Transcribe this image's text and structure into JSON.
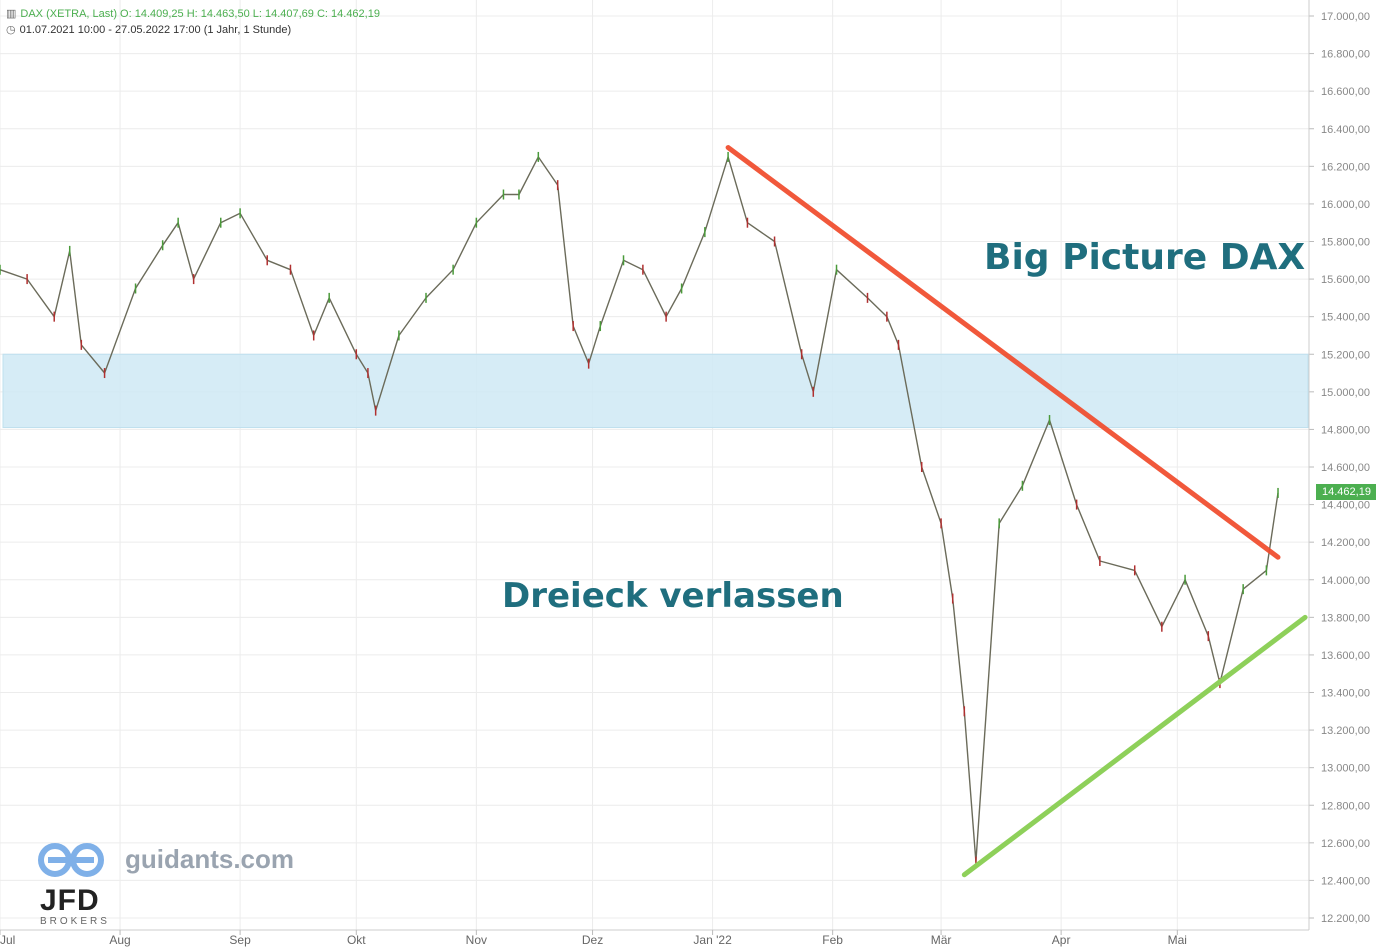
{
  "header": {
    "line1": "DAX (XETRA, Last)  O: 14.409,25  H: 14.463,50  L: 14.407,69  C: 14.462,19",
    "line2": "01.07.2021 10:00 - 27.05.2022 17:00  (1 Jahr, 1 Stunde)"
  },
  "annotations": {
    "title": "Big Picture DAX",
    "subtitle": "Dreieck verlassen"
  },
  "watermark": {
    "guidants": "guidants.com",
    "jfd": "JFD",
    "jfd_sub": "BROKERS"
  },
  "last_price_label": "14.462,19",
  "chart_data": {
    "type": "line",
    "title": "",
    "xlabel": "",
    "ylabel": "",
    "ylim": [
      12200,
      17000
    ],
    "yticks": [
      "17.000,00",
      "16.800,00",
      "16.600,00",
      "16.400,00",
      "16.200,00",
      "16.000,00",
      "15.800,00",
      "15.600,00",
      "15.400,00",
      "15.200,00",
      "15.000,00",
      "14.800,00",
      "14.600,00",
      "14.400,00",
      "14.200,00",
      "14.000,00",
      "13.800,00",
      "13.600,00",
      "13.400,00",
      "13.200,00",
      "13.000,00",
      "12.800,00",
      "12.600,00",
      "12.400,00",
      "12.200,00"
    ],
    "ytick_values": [
      17000,
      16800,
      16600,
      16400,
      16200,
      16000,
      15800,
      15600,
      15400,
      15200,
      15000,
      14800,
      14600,
      14400,
      14200,
      14000,
      13800,
      13600,
      13400,
      13200,
      13000,
      12800,
      12600,
      12400,
      12200
    ],
    "xticks": [
      "Jul",
      "Aug",
      "Sep",
      "Okt",
      "Nov",
      "Dez",
      "Jan '22",
      "Feb",
      "Mär",
      "Apr",
      "Mai"
    ],
    "xtick_dates": [
      "2021-07-01",
      "2021-08-01",
      "2021-09-01",
      "2021-10-01",
      "2021-11-01",
      "2021-12-01",
      "2022-01-01",
      "2022-02-01",
      "2022-03-01",
      "2022-04-01",
      "2022-05-01"
    ],
    "x": [
      "2021-07-01",
      "2021-07-08",
      "2021-07-15",
      "2021-07-19",
      "2021-07-22",
      "2021-07-28",
      "2021-08-05",
      "2021-08-12",
      "2021-08-16",
      "2021-08-20",
      "2021-08-27",
      "2021-09-01",
      "2021-09-08",
      "2021-09-14",
      "2021-09-20",
      "2021-09-24",
      "2021-10-01",
      "2021-10-04",
      "2021-10-06",
      "2021-10-12",
      "2021-10-19",
      "2021-10-26",
      "2021-11-01",
      "2021-11-08",
      "2021-11-12",
      "2021-11-17",
      "2021-11-22",
      "2021-11-26",
      "2021-11-30",
      "2021-12-03",
      "2021-12-09",
      "2021-12-14",
      "2021-12-20",
      "2021-12-24",
      "2021-12-30",
      "2022-01-05",
      "2022-01-10",
      "2022-01-17",
      "2022-01-24",
      "2022-01-27",
      "2022-02-02",
      "2022-02-10",
      "2022-02-15",
      "2022-02-18",
      "2022-02-24",
      "2022-03-01",
      "2022-03-04",
      "2022-03-07",
      "2022-03-10",
      "2022-03-16",
      "2022-03-22",
      "2022-03-29",
      "2022-04-05",
      "2022-04-11",
      "2022-04-20",
      "2022-04-27",
      "2022-05-03",
      "2022-05-09",
      "2022-05-12",
      "2022-05-18",
      "2022-05-24",
      "2022-05-27"
    ],
    "series": [
      {
        "values": [
          15650,
          15600,
          15400,
          15750,
          15250,
          15100,
          15550,
          15780,
          15900,
          15600,
          15900,
          15950,
          15700,
          15650,
          15300,
          15500,
          15200,
          15100,
          14900,
          15300,
          15500,
          15650,
          15900,
          16050,
          16050,
          16250,
          16100,
          15350,
          15150,
          15350,
          15700,
          15650,
          15400,
          15550,
          15850,
          16250,
          15900,
          15800,
          15200,
          15000,
          15650,
          15500,
          15400,
          15250,
          14600,
          14300,
          13900,
          13300,
          12500,
          14300,
          14500,
          14850,
          14400,
          14100,
          14050,
          13750,
          14000,
          13700,
          13450,
          13950,
          14050,
          14462
        ]
      }
    ],
    "resistance_line": {
      "from": {
        "x": "2022-01-05",
        "y": 16300
      },
      "to": {
        "x": "2022-05-27",
        "y": 14120
      }
    },
    "support_line": {
      "from": {
        "x": "2022-03-07",
        "y": 12430
      },
      "to": {
        "x": "2022-06-03",
        "y": 13800
      }
    },
    "support_zone": {
      "y_from": 14810,
      "y_to": 15200
    },
    "grid": true,
    "legend": "none"
  }
}
